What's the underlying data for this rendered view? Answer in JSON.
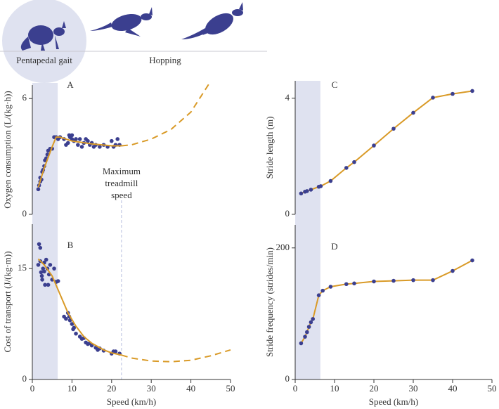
{
  "header": {
    "labels": [
      "Pentapedal gait",
      "Hopping"
    ]
  },
  "chart_data": [
    {
      "type": "scatter",
      "title": "A",
      "ylabel": "Oxygen consumption (L/(kg·h))",
      "xlim": [
        0,
        50
      ],
      "ylim": [
        0,
        6.7
      ],
      "yticks": [
        0,
        6
      ],
      "shade": [
        0,
        6.4
      ],
      "annotation": {
        "text": [
          "Maximum",
          "treadmill",
          "speed"
        ],
        "x": 22.5
      },
      "series": [
        {
          "kind": "points",
          "color": "#3b3f8f",
          "x": [
            1.5,
            1.7,
            2,
            2,
            2.3,
            2.5,
            2.7,
            3,
            3.2,
            3.5,
            3.8,
            4,
            4.5,
            5,
            5.5,
            6,
            6.5,
            7,
            8,
            8.5,
            9,
            9.3,
            9.5,
            10,
            10,
            10.5,
            11,
            11.5,
            12,
            12.5,
            13,
            13.5,
            14,
            14.5,
            15,
            15.5,
            16,
            17,
            18,
            19,
            20,
            20.5,
            21,
            21.5,
            22
          ],
          "values": [
            1.3,
            1.5,
            1.7,
            1.9,
            1.8,
            2.2,
            2.3,
            2.5,
            2.8,
            2.9,
            3.1,
            3.3,
            3.4,
            3.4,
            4.0,
            4.0,
            3.9,
            4.0,
            3.9,
            3.6,
            3.7,
            4.1,
            4.0,
            3.9,
            4.1,
            3.8,
            3.9,
            3.6,
            3.9,
            3.5,
            3.7,
            3.9,
            3.8,
            3.6,
            3.7,
            3.5,
            3.6,
            3.5,
            3.6,
            3.5,
            3.8,
            3.5,
            3.6,
            3.9,
            3.6
          ]
        },
        {
          "kind": "solid",
          "color": "#d99a27",
          "x": [
            1.5,
            3,
            5,
            6,
            7,
            10,
            15,
            20,
            22.5
          ],
          "values": [
            1.4,
            2.4,
            3.5,
            4.0,
            4.0,
            3.8,
            3.65,
            3.55,
            3.55
          ]
        },
        {
          "kind": "dashed",
          "color": "#d99a27",
          "x": [
            22.5,
            25,
            30,
            35,
            40,
            45
          ],
          "values": [
            3.55,
            3.6,
            3.9,
            4.4,
            5.3,
            6.9
          ]
        }
      ]
    },
    {
      "type": "scatter",
      "title": "B",
      "ylabel": "Cost of transport (J/(kg·m))",
      "xlabel": "Speed (km/h)",
      "xlim": [
        0,
        50
      ],
      "xticks": [
        0,
        10,
        20,
        30,
        40,
        50
      ],
      "ylim": [
        0,
        21
      ],
      "yticks": [
        0,
        15
      ],
      "shade": [
        0,
        6.4
      ],
      "series": [
        {
          "kind": "points",
          "color": "#3b3f8f",
          "x": [
            1.5,
            1.7,
            2,
            2,
            2.2,
            2.4,
            2.5,
            2.7,
            3,
            3,
            3.2,
            3.5,
            3.8,
            4,
            4.2,
            4.5,
            5,
            5.5,
            6,
            6.5,
            8,
            8.5,
            9,
            9.3,
            9.5,
            10,
            10.3,
            10.5,
            11,
            12,
            12.5,
            13,
            13.5,
            14,
            14.5,
            15,
            16,
            16.5,
            17,
            18,
            20,
            20.5,
            21,
            22
          ],
          "values": [
            15.5,
            18.3,
            17.8,
            16,
            14.5,
            14,
            13.5,
            15,
            15.8,
            14.6,
            12.8,
            16.2,
            15,
            12.8,
            14.2,
            15.5,
            13.5,
            15,
            13.2,
            13.3,
            8.5,
            8.2,
            9,
            8.5,
            8,
            7.5,
            6.8,
            7,
            6.2,
            5.8,
            5.5,
            5.6,
            5,
            4.8,
            4.9,
            4.6,
            4.3,
            4,
            4.2,
            3.9,
            3.5,
            3.8,
            3.8,
            3.5
          ]
        },
        {
          "kind": "solid",
          "color": "#d99a27",
          "x": [
            1.5,
            3,
            5,
            7,
            9,
            11,
            13,
            15,
            18,
            20,
            22.5
          ],
          "values": [
            16.3,
            15.5,
            14,
            11.5,
            9,
            7.2,
            5.8,
            4.9,
            4,
            3.6,
            3.3
          ]
        },
        {
          "kind": "dashed",
          "color": "#d99a27",
          "x": [
            22.5,
            25,
            30,
            35,
            40,
            45,
            50
          ],
          "values": [
            3.3,
            2.9,
            2.5,
            2.4,
            2.6,
            3.2,
            4.0
          ]
        }
      ]
    },
    {
      "type": "line",
      "title": "C",
      "ylabel": "Stride length (m)",
      "xlim": [
        0,
        50
      ],
      "ylim": [
        0,
        4.6
      ],
      "yticks": [
        0,
        4
      ],
      "shade": [
        0,
        6.4
      ],
      "series": [
        {
          "kind": "line-points",
          "color": "#d99a27",
          "marker": "#3b3f8f",
          "x": [
            1.5,
            2.5,
            3,
            4,
            6,
            6.5,
            9,
            13,
            15,
            20,
            25,
            30,
            35,
            40,
            45
          ],
          "values": [
            0.72,
            0.78,
            0.8,
            0.85,
            0.95,
            0.97,
            1.15,
            1.6,
            1.8,
            2.37,
            2.95,
            3.5,
            4.02,
            4.15,
            4.25
          ]
        }
      ]
    },
    {
      "type": "line",
      "title": "D",
      "ylabel": "Stride frequency (strides/min)",
      "xlabel": "Speed (km/h)",
      "xlim": [
        0,
        50
      ],
      "xticks": [
        0,
        10,
        20,
        30,
        40,
        50
      ],
      "ylim": [
        0,
        235
      ],
      "yticks": [
        0,
        200
      ],
      "shade": [
        0,
        6.4
      ],
      "series": [
        {
          "kind": "line-points",
          "color": "#d99a27",
          "marker": "#3b3f8f",
          "x": [
            1.5,
            2.5,
            3,
            3.5,
            4,
            4.5,
            6,
            7,
            9,
            13,
            15,
            20,
            25,
            30,
            35,
            40,
            45
          ],
          "values": [
            55,
            65,
            72,
            80,
            87,
            92,
            128,
            135,
            141,
            145,
            146,
            149,
            150,
            151,
            151,
            165,
            181
          ]
        }
      ]
    }
  ]
}
